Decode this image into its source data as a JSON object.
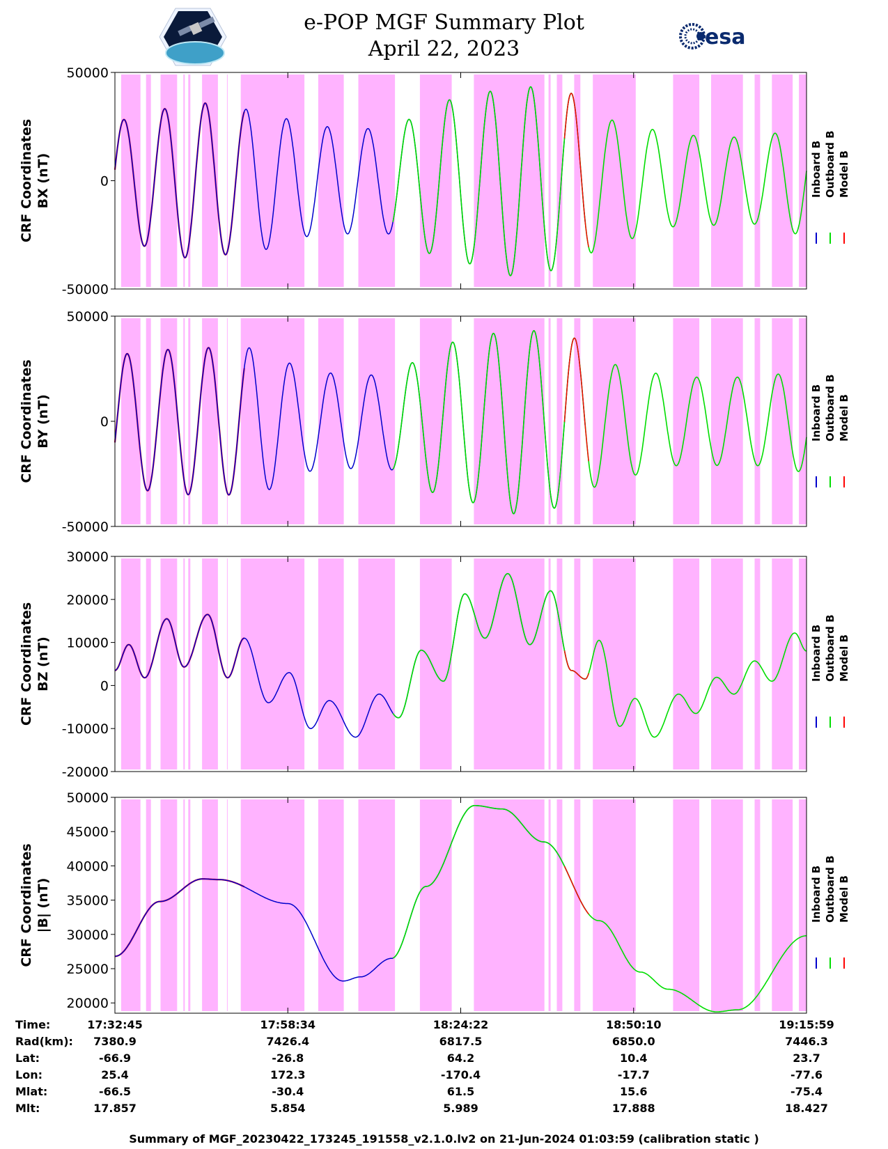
{
  "header": {
    "title": "e-POP MGF Summary Plot",
    "date": "April 22, 2023"
  },
  "legend": [
    "Inboard B",
    "Outboard B",
    "Model B"
  ],
  "colors": {
    "inboard": "#0000cc",
    "outboard": "#00dd00",
    "model": "#ff0000",
    "shade": "#ffb3ff"
  },
  "chart_data": [
    {
      "type": "line",
      "panel": "BX",
      "ylabel": [
        "CRF Coordinates",
        "BX (nT)"
      ],
      "ylim": [
        -50000,
        50000
      ],
      "yticks": [
        50000,
        0,
        -50000
      ]
    },
    {
      "type": "line",
      "panel": "BY",
      "ylabel": [
        "CRF Coordinates",
        "BY (nT)"
      ],
      "ylim": [
        -50000,
        50000
      ],
      "yticks": [
        50000,
        0,
        -50000
      ]
    },
    {
      "type": "line",
      "panel": "BZ",
      "ylabel": [
        "CRF Coordinates",
        "BZ (nT)"
      ],
      "ylim": [
        -20000,
        30000
      ],
      "yticks": [
        30000,
        20000,
        10000,
        0,
        -10000,
        -20000
      ]
    },
    {
      "type": "line",
      "panel": "B",
      "ylabel": [
        "CRF Coordinates",
        "|B| (nT)"
      ],
      "ylim": [
        18500,
        50000
      ],
      "yticks": [
        50000,
        45000,
        40000,
        35000,
        30000,
        25000,
        20000
      ]
    }
  ],
  "time_axis": {
    "ticks": [
      "17:32:45",
      "17:58:34",
      "18:24:22",
      "18:50:10",
      "19:15:59"
    ],
    "segments": {
      "model_end": 0.187,
      "outboard_start": 0.402,
      "inboard_end": 0.68
    },
    "bz_anchors": [
      [
        0,
        3500
      ],
      [
        0.02,
        9500
      ],
      [
        0.043,
        1800
      ],
      [
        0.075,
        15500
      ],
      [
        0.1,
        4300
      ],
      [
        0.134,
        16500
      ],
      [
        0.163,
        1800
      ],
      [
        0.187,
        11000
      ],
      [
        0.222,
        -4000
      ],
      [
        0.252,
        3000
      ],
      [
        0.283,
        -10000
      ],
      [
        0.31,
        -3500
      ],
      [
        0.348,
        -12000
      ],
      [
        0.382,
        -2000
      ],
      [
        0.41,
        -7500
      ],
      [
        0.443,
        8200
      ],
      [
        0.475,
        1000
      ],
      [
        0.506,
        21300
      ],
      [
        0.535,
        11000
      ],
      [
        0.568,
        26000
      ],
      [
        0.6,
        9500
      ],
      [
        0.63,
        22000
      ],
      [
        0.66,
        3500
      ],
      [
        0.68,
        1500
      ],
      [
        0.7,
        10500
      ],
      [
        0.73,
        -9500
      ],
      [
        0.752,
        -3000
      ],
      [
        0.78,
        -12000
      ],
      [
        0.815,
        -2000
      ],
      [
        0.84,
        -6500
      ],
      [
        0.87,
        1900
      ],
      [
        0.895,
        -2000
      ],
      [
        0.925,
        5700
      ],
      [
        0.95,
        1000
      ],
      [
        0.983,
        12200
      ],
      [
        1.0,
        8000
      ]
    ],
    "bmag_anchors": [
      [
        0,
        26800
      ],
      [
        0.065,
        34800
      ],
      [
        0.127,
        38100
      ],
      [
        0.15,
        38000
      ],
      [
        0.25,
        34500
      ],
      [
        0.33,
        23200
      ],
      [
        0.355,
        23800
      ],
      [
        0.4,
        26500
      ],
      [
        0.45,
        37000
      ],
      [
        0.52,
        48800
      ],
      [
        0.56,
        48300
      ],
      [
        0.62,
        43500
      ],
      [
        0.7,
        32000
      ],
      [
        0.76,
        24500
      ],
      [
        0.8,
        22000
      ],
      [
        0.87,
        18700
      ],
      [
        0.9,
        19000
      ],
      [
        1.0,
        29800
      ]
    ]
  },
  "info_table": {
    "labels": [
      "Time:",
      "Rad(km):",
      "Lat:",
      "Lon:",
      "Mlat:",
      "Mlt:"
    ],
    "columns": [
      [
        "17:32:45",
        "7380.9",
        "-66.9",
        "25.4",
        "-66.5",
        "17.857"
      ],
      [
        "17:58:34",
        "7426.4",
        "-26.8",
        "172.3",
        "-30.4",
        "5.854"
      ],
      [
        "18:24:22",
        "6817.5",
        "64.2",
        "-170.4",
        "61.5",
        "5.989"
      ],
      [
        "18:50:10",
        "6850.0",
        "10.4",
        "-17.7",
        "15.6",
        "17.888"
      ],
      [
        "19:15:59",
        "7446.3",
        "23.7",
        "-77.6",
        "-75.4",
        "18.427"
      ]
    ]
  },
  "footer": "Summary of MGF_20230422_173245_191558_v2.1.0.lv2 on 21-Jun-2024 01:03:59 (calibration static )"
}
